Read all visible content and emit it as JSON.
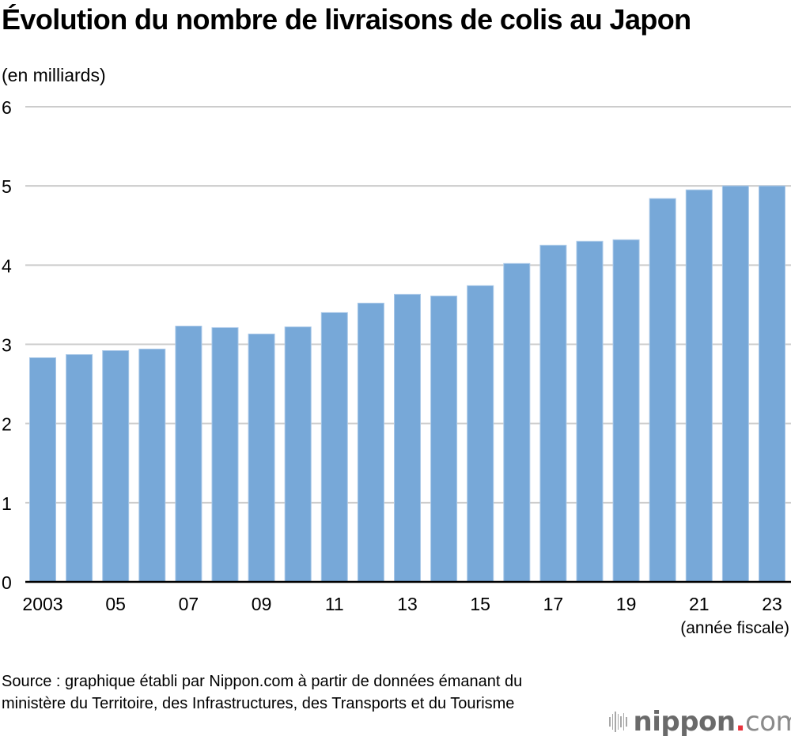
{
  "title": "Évolution du nombre de livraisons de colis au Japon",
  "unit_label": "(en milliards)",
  "x_unit_label": "(année fiscale)",
  "source": "Source : graphique établi par Nippon.com à partir de données émanant du ministère du Territoire, des Infrastructures, des Transports et du Tourisme",
  "logo": {
    "name": "nippon",
    "dot": ".",
    "suffix": "com"
  },
  "colors": {
    "bar": "#77a8d8",
    "grid": "#cccccc",
    "axis": "#000000"
  },
  "chart_data": {
    "type": "bar",
    "title": "Évolution du nombre de livraisons de colis au Japon",
    "ylabel": "(en milliards)",
    "xlabel": "(année fiscale)",
    "ylim": [
      0,
      6
    ],
    "yticks": [
      0,
      1,
      2,
      3,
      4,
      5,
      6
    ],
    "grid": true,
    "legend": "none",
    "categories": [
      "2003",
      "2004",
      "2005",
      "2006",
      "2007",
      "2008",
      "2009",
      "2010",
      "2011",
      "2012",
      "2013",
      "2014",
      "2015",
      "2016",
      "2017",
      "2018",
      "2019",
      "2020",
      "2021",
      "2022",
      "2023"
    ],
    "xtick_labels": [
      "2003",
      "",
      "05",
      "",
      "07",
      "",
      "09",
      "",
      "11",
      "",
      "13",
      "",
      "15",
      "",
      "17",
      "",
      "19",
      "",
      "21",
      "",
      "23"
    ],
    "values": [
      2.83,
      2.87,
      2.92,
      2.94,
      3.23,
      3.21,
      3.13,
      3.22,
      3.4,
      3.52,
      3.63,
      3.61,
      3.74,
      4.02,
      4.25,
      4.3,
      4.32,
      4.84,
      4.95,
      5.0,
      5.0
    ]
  }
}
